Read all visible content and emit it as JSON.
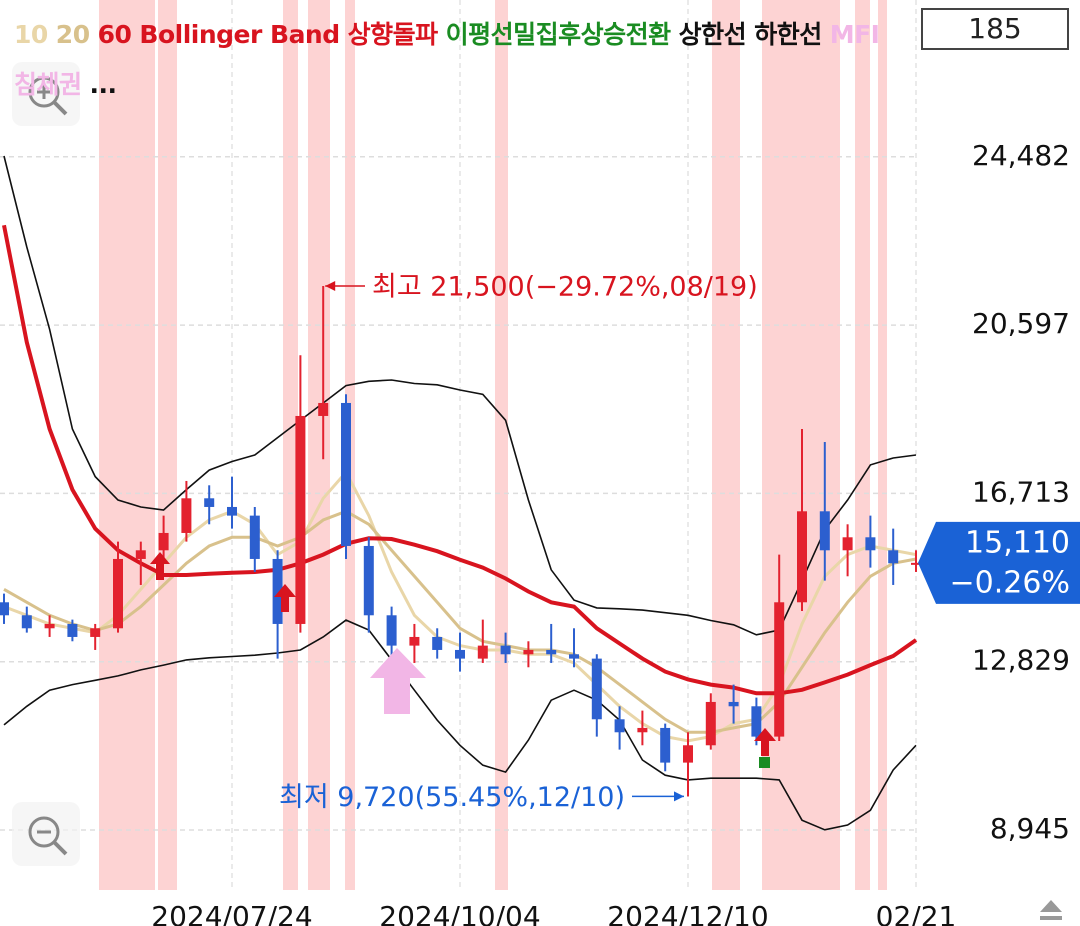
{
  "toolbar": {
    "period": "185"
  },
  "chart_data": {
    "type": "candlestick",
    "x": [
      null,
      null,
      null,
      null,
      null,
      null,
      null,
      null,
      null,
      null,
      "2024/07/24",
      null,
      null,
      null,
      null,
      null,
      null,
      null,
      null,
      null,
      "2024/10/04",
      null,
      null,
      null,
      null,
      null,
      null,
      null,
      null,
      null,
      "2024/12/10",
      null,
      null,
      null,
      null,
      null,
      null,
      null,
      null,
      null,
      "02/21"
    ],
    "open": [
      14200,
      13900,
      13600,
      13700,
      13400,
      13600,
      15200,
      15400,
      15800,
      16600,
      16400,
      16200,
      15200,
      13700,
      18500,
      18800,
      15500,
      13900,
      13200,
      13400,
      13100,
      12900,
      13200,
      13000,
      13100,
      13000,
      12900,
      11500,
      11200,
      11300,
      10500,
      10900,
      11900,
      11800,
      11100,
      14200,
      16300,
      15400,
      15700,
      15400,
      15100
    ],
    "high": [
      14400,
      14100,
      13900,
      13800,
      13700,
      15600,
      15600,
      16200,
      17000,
      16900,
      17100,
      16400,
      15400,
      19900,
      21500,
      19000,
      15700,
      14100,
      13700,
      13600,
      13500,
      13800,
      13500,
      13300,
      13700,
      13600,
      13000,
      11800,
      11700,
      11400,
      11200,
      12100,
      12300,
      12000,
      15300,
      18200,
      17900,
      16000,
      16200,
      15900,
      15400
    ],
    "low": [
      13700,
      13500,
      13400,
      13300,
      13100,
      13500,
      14600,
      15100,
      15600,
      16000,
      15900,
      14900,
      12900,
      13500,
      17500,
      15200,
      13500,
      12900,
      12800,
      12900,
      12600,
      12800,
      12800,
      12700,
      12800,
      12700,
      11100,
      10800,
      10900,
      10300,
      9720,
      10800,
      11400,
      10900,
      11000,
      14000,
      14700,
      14800,
      15000,
      14600,
      14900
    ],
    "close": [
      13900,
      13600,
      13700,
      13400,
      13600,
      15200,
      15400,
      15800,
      16600,
      16400,
      16200,
      15200,
      13700,
      18500,
      18800,
      15500,
      13900,
      13200,
      13400,
      13100,
      12900,
      13200,
      13000,
      13100,
      13000,
      12900,
      11500,
      11200,
      11300,
      10500,
      10900,
      11900,
      11800,
      11100,
      14200,
      16300,
      15400,
      15700,
      15400,
      15100,
      15110
    ],
    "up_color": "#e3222f",
    "down_color": "#2c5fcf",
    "series": [
      {
        "name": "10",
        "color": "#e9d6a8",
        "values": [
          14100,
          13900,
          13700,
          13600,
          13500,
          13900,
          14500,
          15100,
          15700,
          16100,
          16300,
          16000,
          15300,
          15600,
          16600,
          17200,
          16200,
          14900,
          13900,
          13400,
          13200,
          13100,
          13100,
          13000,
          13000,
          12800,
          12300,
          11800,
          11400,
          11100,
          11000,
          11100,
          11400,
          11500,
          12300,
          13700,
          14800,
          15300,
          15500,
          15400,
          15300
        ]
      },
      {
        "name": "20",
        "color": "#d8c18c",
        "values": [
          14500,
          14200,
          13900,
          13700,
          13550,
          13700,
          14100,
          14600,
          15100,
          15500,
          15700,
          15700,
          15500,
          15700,
          16100,
          16300,
          16000,
          15400,
          14800,
          14200,
          13600,
          13300,
          13200,
          13100,
          13100,
          13000,
          12700,
          12300,
          11900,
          11500,
          11200,
          11200,
          11300,
          11400,
          11900,
          12700,
          13500,
          14200,
          14800,
          15100,
          15200
        ]
      },
      {
        "name": "60",
        "color": "#d8141f",
        "values": [
          22900,
          20200,
          18200,
          16800,
          15900,
          15400,
          15100,
          14830,
          14830,
          14860,
          14880,
          14900,
          14950,
          15100,
          15300,
          15550,
          15680,
          15660,
          15530,
          15380,
          15180,
          15000,
          14750,
          14450,
          14200,
          14100,
          13600,
          13250,
          12900,
          12600,
          12420,
          12300,
          12230,
          12100,
          12100,
          12180,
          12350,
          12530,
          12750,
          12960,
          13330
        ]
      },
      {
        "name": "상한선",
        "color": "#111111",
        "values": [
          24500,
          22400,
          20500,
          18200,
          17100,
          16560,
          16400,
          16330,
          16800,
          17250,
          17450,
          17600,
          18000,
          18400,
          18800,
          19200,
          19300,
          19330,
          19250,
          19220,
          19100,
          19000,
          18400,
          16560,
          14950,
          14250,
          14070,
          14050,
          14020,
          13960,
          13900,
          13780,
          13680,
          13450,
          13560,
          14700,
          15870,
          16560,
          17370,
          17530,
          17600
        ]
      },
      {
        "name": "하한선",
        "color": "#111111",
        "values": [
          11370,
          11800,
          12170,
          12300,
          12400,
          12500,
          12640,
          12750,
          12870,
          12920,
          12950,
          12980,
          13030,
          13100,
          13400,
          13790,
          13560,
          12870,
          12170,
          11480,
          10900,
          10440,
          10280,
          11020,
          11940,
          12170,
          11940,
          11480,
          10560,
          10210,
          10100,
          10140,
          10140,
          10140,
          10100,
          9170,
          8950,
          9060,
          9400,
          10330,
          10900
        ]
      }
    ],
    "legend_extra": [
      {
        "label": "Bollinger Band",
        "color": "#d8141f"
      },
      {
        "label": "상향돌파",
        "color": "#d8141f"
      },
      {
        "label": "이평선밀집후상승전환",
        "color": "#1a8c22"
      },
      {
        "label": "MFI침체권",
        "color": "#f2b6e6"
      },
      {
        "label": "...",
        "color": "#111111"
      }
    ],
    "ylim": [
      7560,
      28100
    ],
    "yticks": [
      {
        "value": 24482,
        "label": "24,482"
      },
      {
        "value": 20597,
        "label": "20,597"
      },
      {
        "value": 16713,
        "label": "16,713"
      },
      {
        "value": 12829,
        "label": "12,829"
      },
      {
        "value": 8945,
        "label": "8,945"
      }
    ],
    "grid": true,
    "last_price": {
      "value": 15110,
      "label": "15,110",
      "change": "−0.26%",
      "color": "#1a62d6"
    },
    "annotations": [
      {
        "text": "최고 21,500(−29.72%,08/19)",
        "color": "#d8141f"
      },
      {
        "text": "최저 9,720(55.45%,12/10)",
        "color": "#1a62d6"
      }
    ]
  }
}
